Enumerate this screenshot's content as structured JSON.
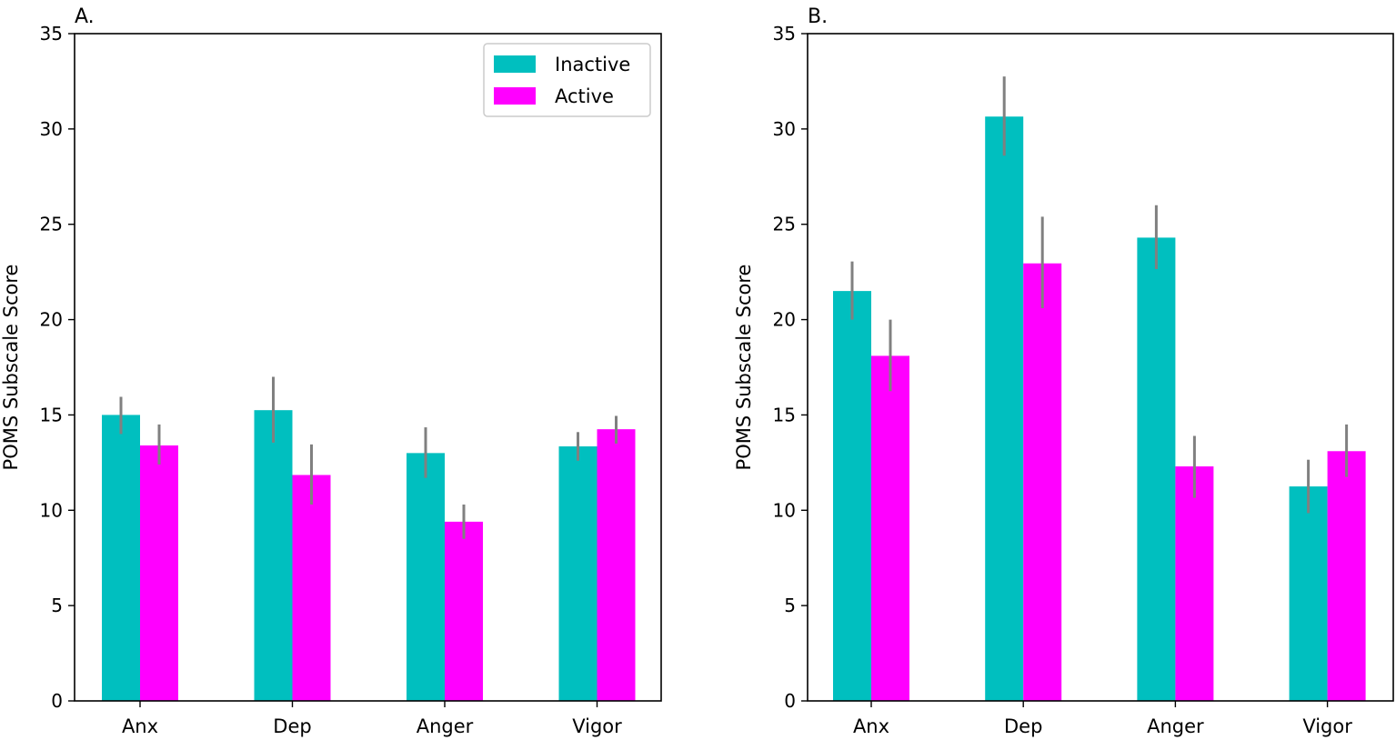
{
  "chart_data": [
    {
      "panel_label": "A.",
      "type": "bar",
      "ylabel": "POMS Subscale Score",
      "xlabel": "",
      "ylim": [
        0,
        35
      ],
      "yticks": [
        0,
        5,
        10,
        15,
        20,
        25,
        30,
        35
      ],
      "categories": [
        "Anx",
        "Dep",
        "Anger",
        "Vigor"
      ],
      "legend": {
        "placement": "top-right",
        "visible": true
      },
      "grid": false,
      "series": [
        {
          "name": "Inactive",
          "color": "#00BFBF",
          "values": [
            15.0,
            15.25,
            13.0,
            13.35
          ],
          "error_low": [
            14.0,
            13.55,
            11.7,
            12.6
          ],
          "error_high": [
            15.95,
            17.0,
            14.35,
            14.1
          ]
        },
        {
          "name": "Active",
          "color": "#FF00FF",
          "values": [
            13.4,
            11.85,
            9.4,
            14.25
          ],
          "error_low": [
            12.4,
            10.3,
            8.5,
            13.5
          ],
          "error_high": [
            14.5,
            13.45,
            10.3,
            14.95
          ]
        }
      ],
      "error_color": "#808080"
    },
    {
      "panel_label": "B.",
      "type": "bar",
      "ylabel": "POMS Subscale Score",
      "xlabel": "",
      "ylim": [
        0,
        35
      ],
      "yticks": [
        0,
        5,
        10,
        15,
        20,
        25,
        30,
        35
      ],
      "categories": [
        "Anx",
        "Dep",
        "Anger",
        "Vigor"
      ],
      "legend": {
        "placement": "none",
        "visible": false
      },
      "grid": false,
      "series": [
        {
          "name": "Inactive",
          "color": "#00BFBF",
          "values": [
            21.5,
            30.65,
            24.3,
            11.25
          ],
          "error_low": [
            20.0,
            28.6,
            22.65,
            9.85
          ],
          "error_high": [
            23.05,
            32.75,
            26.0,
            12.65
          ]
        },
        {
          "name": "Active",
          "color": "#FF00FF",
          "values": [
            18.1,
            22.95,
            12.3,
            13.1
          ],
          "error_low": [
            16.25,
            20.6,
            10.65,
            11.75
          ],
          "error_high": [
            20.0,
            25.4,
            13.9,
            14.5
          ]
        }
      ],
      "error_color": "#808080"
    }
  ]
}
